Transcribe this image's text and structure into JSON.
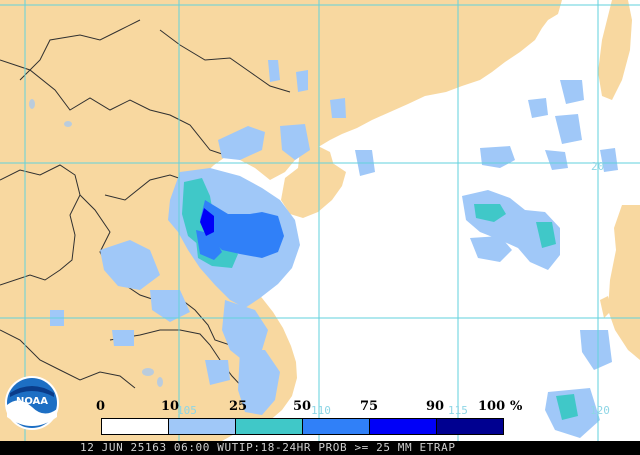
{
  "colors": {
    "land": "#f8d8a0",
    "ocean": "#ffffff",
    "grid": "#62d2dc",
    "border": "#303030",
    "prob_25": "#a0c8f8",
    "prob_50": "#40c8c8",
    "prob_75": "#3080f8",
    "prob_90": "#0000f8",
    "prob_100": "#000090"
  },
  "grid_labels": [
    "20",
    "115",
    "110",
    "105",
    "120"
  ],
  "legend": {
    "ticks": [
      "0",
      "10",
      "25",
      "50",
      "75",
      "90",
      "100",
      "%"
    ],
    "bins": [
      {
        "range": "0-10",
        "color": "#ffffff"
      },
      {
        "range": "10-25",
        "color": "#a0c8f8"
      },
      {
        "range": "25-50",
        "color": "#40c8c8"
      },
      {
        "range": "50-75",
        "color": "#3080f8"
      },
      {
        "range": "75-90",
        "color": "#0000f8"
      },
      {
        "range": "90-100",
        "color": "#000090"
      }
    ]
  },
  "logo": {
    "text": "NOAA",
    "icon": "noaa-logo-icon"
  },
  "footer": {
    "caption": "12 JUN 25163 06:00 WUTIP:18-24HR PROB >= 25 MM ETRAP"
  }
}
